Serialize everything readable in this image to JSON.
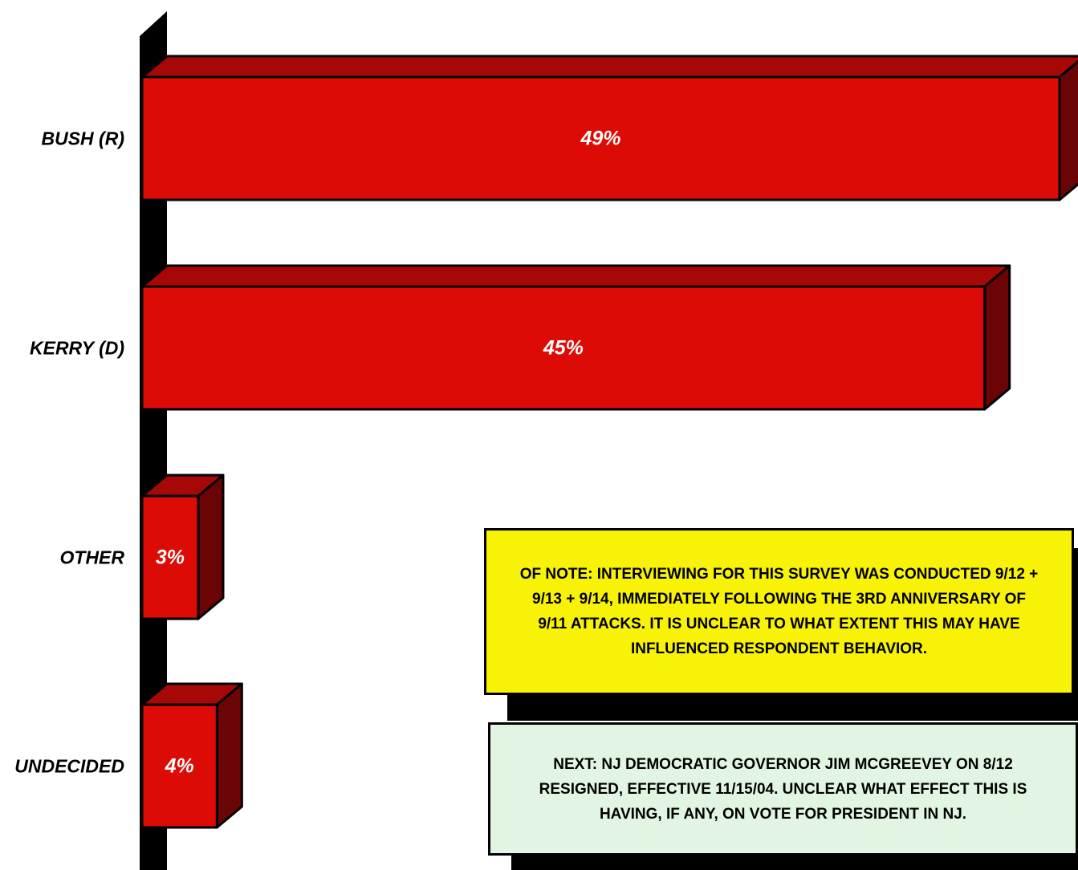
{
  "chart_data": {
    "type": "bar",
    "orientation": "horizontal",
    "categories": [
      "BUSH (R)",
      "KERRY (D)",
      "OTHER",
      "UNDECIDED"
    ],
    "values": [
      49,
      45,
      3,
      4
    ],
    "value_labels": [
      "49%",
      "45%",
      "3%",
      "4%"
    ],
    "xlim": [
      0,
      49
    ],
    "grid": false,
    "style": "3d",
    "bar_color": "#dd0b05"
  },
  "notes": [
    {
      "text": "OF NOTE: INTERVIEWING FOR THIS SURVEY WAS CONDUCTED 9/12 + 9/13 + 9/14, IMMEDIATELY FOLLOWING THE 3RD ANNIVERSARY OF 9/11 ATTACKS. IT IS UNCLEAR TO WHAT EXTENT THIS MAY HAVE INFLUENCED RESPONDENT BEHAVIOR.",
      "background": "#f8f206"
    },
    {
      "text": "NEXT: NJ DEMOCRATIC GOVERNOR JIM MCGREEVEY ON 8/12 RESIGNED, EFFECTIVE 11/15/04. UNCLEAR WHAT EFFECT THIS IS HAVING, IF ANY, ON VOTE FOR PRESIDENT IN NJ.",
      "background": "#e2f5e2"
    }
  ]
}
